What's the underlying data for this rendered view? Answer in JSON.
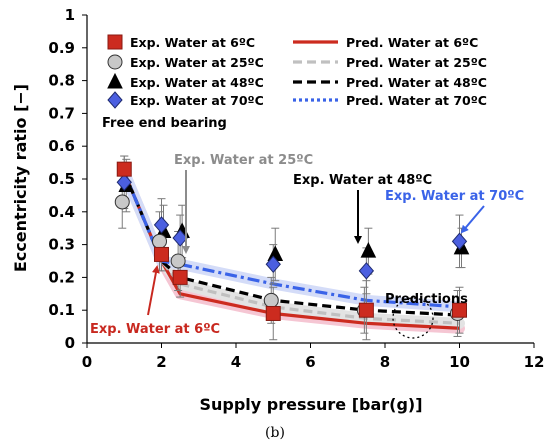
{
  "chart_data": {
    "type": "scatter",
    "xlabel": "Supply pressure [bar(g)]",
    "ylabel": "Eccentricity ratio [−]",
    "xlim": [
      0,
      12
    ],
    "ylim": [
      0,
      1
    ],
    "x_ticks": [
      "0",
      "2",
      "4",
      "6",
      "8",
      "10",
      "12"
    ],
    "y_ticks": [
      "0",
      "0.1",
      "0.2",
      "0.3",
      "0.4",
      "0.5",
      "0.6",
      "0.7",
      "0.8",
      "0.9",
      "1"
    ],
    "grid": false,
    "legend_position": "top",
    "series": [
      {
        "name": "Exp. Water at 6ºC",
        "kind": "experiment",
        "marker": "square",
        "color": "#cc2b1f",
        "x": [
          1,
          2,
          2.5,
          5,
          7.5,
          10
        ],
        "y": [
          0.53,
          0.27,
          0.2,
          0.09,
          0.1,
          0.1
        ],
        "err": [
          0.04,
          0.05,
          0.06,
          0.08,
          0.09,
          0.07
        ]
      },
      {
        "name": "Exp. Water at 25ºC",
        "kind": "experiment",
        "marker": "circle",
        "color": "#c8c8c8",
        "x": [
          1,
          2,
          2.5,
          5,
          7.5,
          10
        ],
        "y": [
          0.43,
          0.31,
          0.25,
          0.13,
          0.1,
          0.09
        ],
        "err": [
          0.08,
          0.09,
          0.09,
          0.07,
          0.07,
          0.07
        ]
      },
      {
        "name": "Exp. Water at 48ºC",
        "kind": "experiment",
        "marker": "triangle",
        "color": "#000000",
        "x": [
          1,
          2,
          2.5,
          5,
          7.5,
          10
        ],
        "y": [
          0.48,
          0.34,
          0.34,
          0.27,
          0.28,
          0.29
        ],
        "err": [
          0.08,
          0.08,
          0.08,
          0.08,
          0.07,
          0.06
        ]
      },
      {
        "name": "Exp. Water at 70ºC",
        "kind": "experiment",
        "marker": "diamond",
        "color": "#4b5fe0",
        "x": [
          1,
          2,
          2.5,
          5,
          7.5,
          10
        ],
        "y": [
          0.49,
          0.36,
          0.32,
          0.24,
          0.22,
          0.31
        ],
        "err": [
          0.08,
          0.08,
          0.07,
          0.06,
          0.07,
          0.08
        ]
      },
      {
        "name": "Pred. Water at 6ºC",
        "kind": "prediction",
        "style": "solid",
        "color": "#cc2b1f",
        "x": [
          1,
          2,
          2.5,
          5,
          7.5,
          10
        ],
        "y": [
          0.52,
          0.25,
          0.15,
          0.09,
          0.06,
          0.045
        ]
      },
      {
        "name": "Pred. Water at 25ºC",
        "kind": "prediction",
        "style": "dashed",
        "color": "#c0c0c0",
        "x": [
          1,
          2,
          2.5,
          5,
          7.5,
          10
        ],
        "y": [
          0.52,
          0.25,
          0.18,
          0.11,
          0.075,
          0.06
        ]
      },
      {
        "name": "Pred. Water at 48ºC",
        "kind": "prediction",
        "style": "dashed",
        "color": "#000000",
        "x": [
          1,
          2,
          2.5,
          5,
          7.5,
          10
        ],
        "y": [
          0.52,
          0.25,
          0.2,
          0.13,
          0.1,
          0.085
        ]
      },
      {
        "name": "Pred. Water at 70ºC",
        "kind": "prediction",
        "style": "dotted",
        "color": "#3a63e8",
        "x": [
          1,
          2,
          2.5,
          5,
          7.5,
          10
        ],
        "y": [
          0.52,
          0.25,
          0.24,
          0.18,
          0.13,
          0.11
        ]
      }
    ],
    "annotations": {
      "bearing_label": "Free end bearing",
      "a25": "Exp. Water at 25ºC",
      "a48": "Exp. Water at 48ºC",
      "a70": "Exp. Water at 70ºC",
      "a6": "Exp. Water at 6ºC",
      "predictions": "Predictions"
    },
    "sub_label": "(b)"
  },
  "colors": {
    "anno_gray": "#8c8c8c",
    "anno_blue": "#3a63e8",
    "anno_red": "#c8281f",
    "red_shadow": "#f5c6d3",
    "gray_shadow": "#e3e3e3",
    "blue_shadow": "#d4dcf8"
  }
}
